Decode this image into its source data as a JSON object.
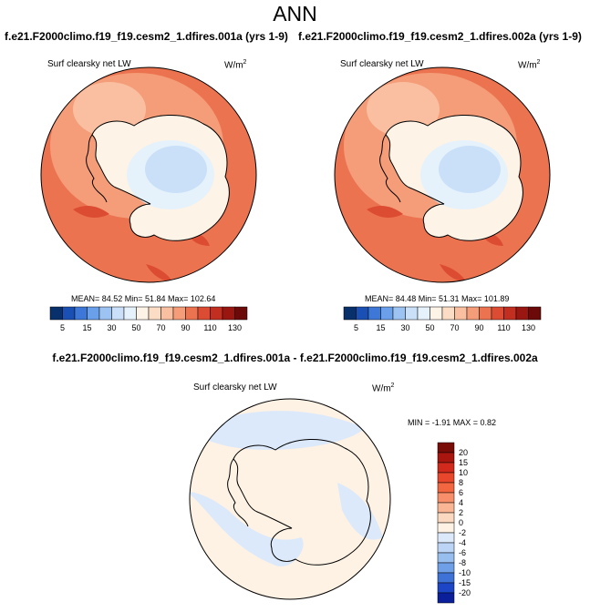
{
  "figure": {
    "title": "ANN",
    "diff_title": "f.e21.F2000climo.f19_f19.cesm2_1.dfires.001a - f.e21.F2000climo.f19_f19.cesm2_1.dfires.002a"
  },
  "panels": [
    {
      "case_title": "f.e21.F2000climo.f19_f19.cesm2_1.dfires.001a (yrs 1-9)",
      "variable": "Surf clearsky net LW",
      "units_base": "W/m",
      "units_exp": "2",
      "stats": "MEAN=  84.52  Min=  51.84  Max= 102.64"
    },
    {
      "case_title": "f.e21.F2000climo.f19_f19.cesm2_1.dfires.002a (yrs 1-9)",
      "variable": "Surf clearsky net LW",
      "units_base": "W/m",
      "units_exp": "2",
      "stats": "MEAN=  84.48  Min=  51.31  Max= 101.89"
    },
    {
      "variable": "Surf clearsky net LW",
      "units_base": "W/m",
      "units_exp": "2",
      "stats": "MIN =  -1.91 MAX =   0.82"
    }
  ],
  "chart_data": [
    {
      "type": "heatmap",
      "projection": "south polar stereographic",
      "title": "f.e21.F2000climo.f19_f19.cesm2_1.dfires.001a (yrs 1-9)",
      "field": "Surf clearsky net LW",
      "units": "W/m2",
      "mean": 84.52,
      "min": 51.84,
      "max": 102.64,
      "colorbar_orientation": "horizontal",
      "colorbar_labels": [
        "5",
        "15",
        "30",
        "50",
        "70",
        "90",
        "110",
        "130"
      ],
      "colorbar_colors": [
        "#08306b",
        "#1a4fb3",
        "#3d78d8",
        "#6aa0ea",
        "#9cc3f2",
        "#c9e0f8",
        "#e6f2fb",
        "#fdf3e6",
        "#fbdcc4",
        "#f9bfa0",
        "#f49d78",
        "#ec7350",
        "#dc4c32",
        "#c22e1f",
        "#9a1711",
        "#6b0a08"
      ]
    },
    {
      "type": "heatmap",
      "projection": "south polar stereographic",
      "title": "f.e21.F2000climo.f19_f19.cesm2_1.dfires.002a (yrs 1-9)",
      "field": "Surf clearsky net LW",
      "units": "W/m2",
      "mean": 84.48,
      "min": 51.31,
      "max": 101.89,
      "colorbar_orientation": "horizontal",
      "colorbar_labels": [
        "5",
        "15",
        "30",
        "50",
        "70",
        "90",
        "110",
        "130"
      ]
    },
    {
      "type": "heatmap",
      "projection": "south polar stereographic",
      "title": "f.e21.F2000climo.f19_f19.cesm2_1.dfires.001a - f.e21.F2000climo.f19_f19.cesm2_1.dfires.002a",
      "field": "Surf clearsky net LW",
      "units": "W/m2",
      "min": -1.91,
      "max": 0.82,
      "colorbar_orientation": "vertical",
      "colorbar_labels": [
        "20",
        "15",
        "10",
        "8",
        "6",
        "4",
        "2",
        "0",
        "-2",
        "-4",
        "-6",
        "-8",
        "-10",
        "-15",
        "-20"
      ],
      "colorbar_colors": [
        "#7a0c08",
        "#a8160f",
        "#d12a1d",
        "#e8472b",
        "#f2673f",
        "#f7906a",
        "#fab595",
        "#fbd9c0",
        "#fdf2e4",
        "#dce9fb",
        "#bcd5f6",
        "#98bef0",
        "#6f9fe7",
        "#3f72d6",
        "#1d46c6",
        "#0c1f9a"
      ]
    }
  ]
}
